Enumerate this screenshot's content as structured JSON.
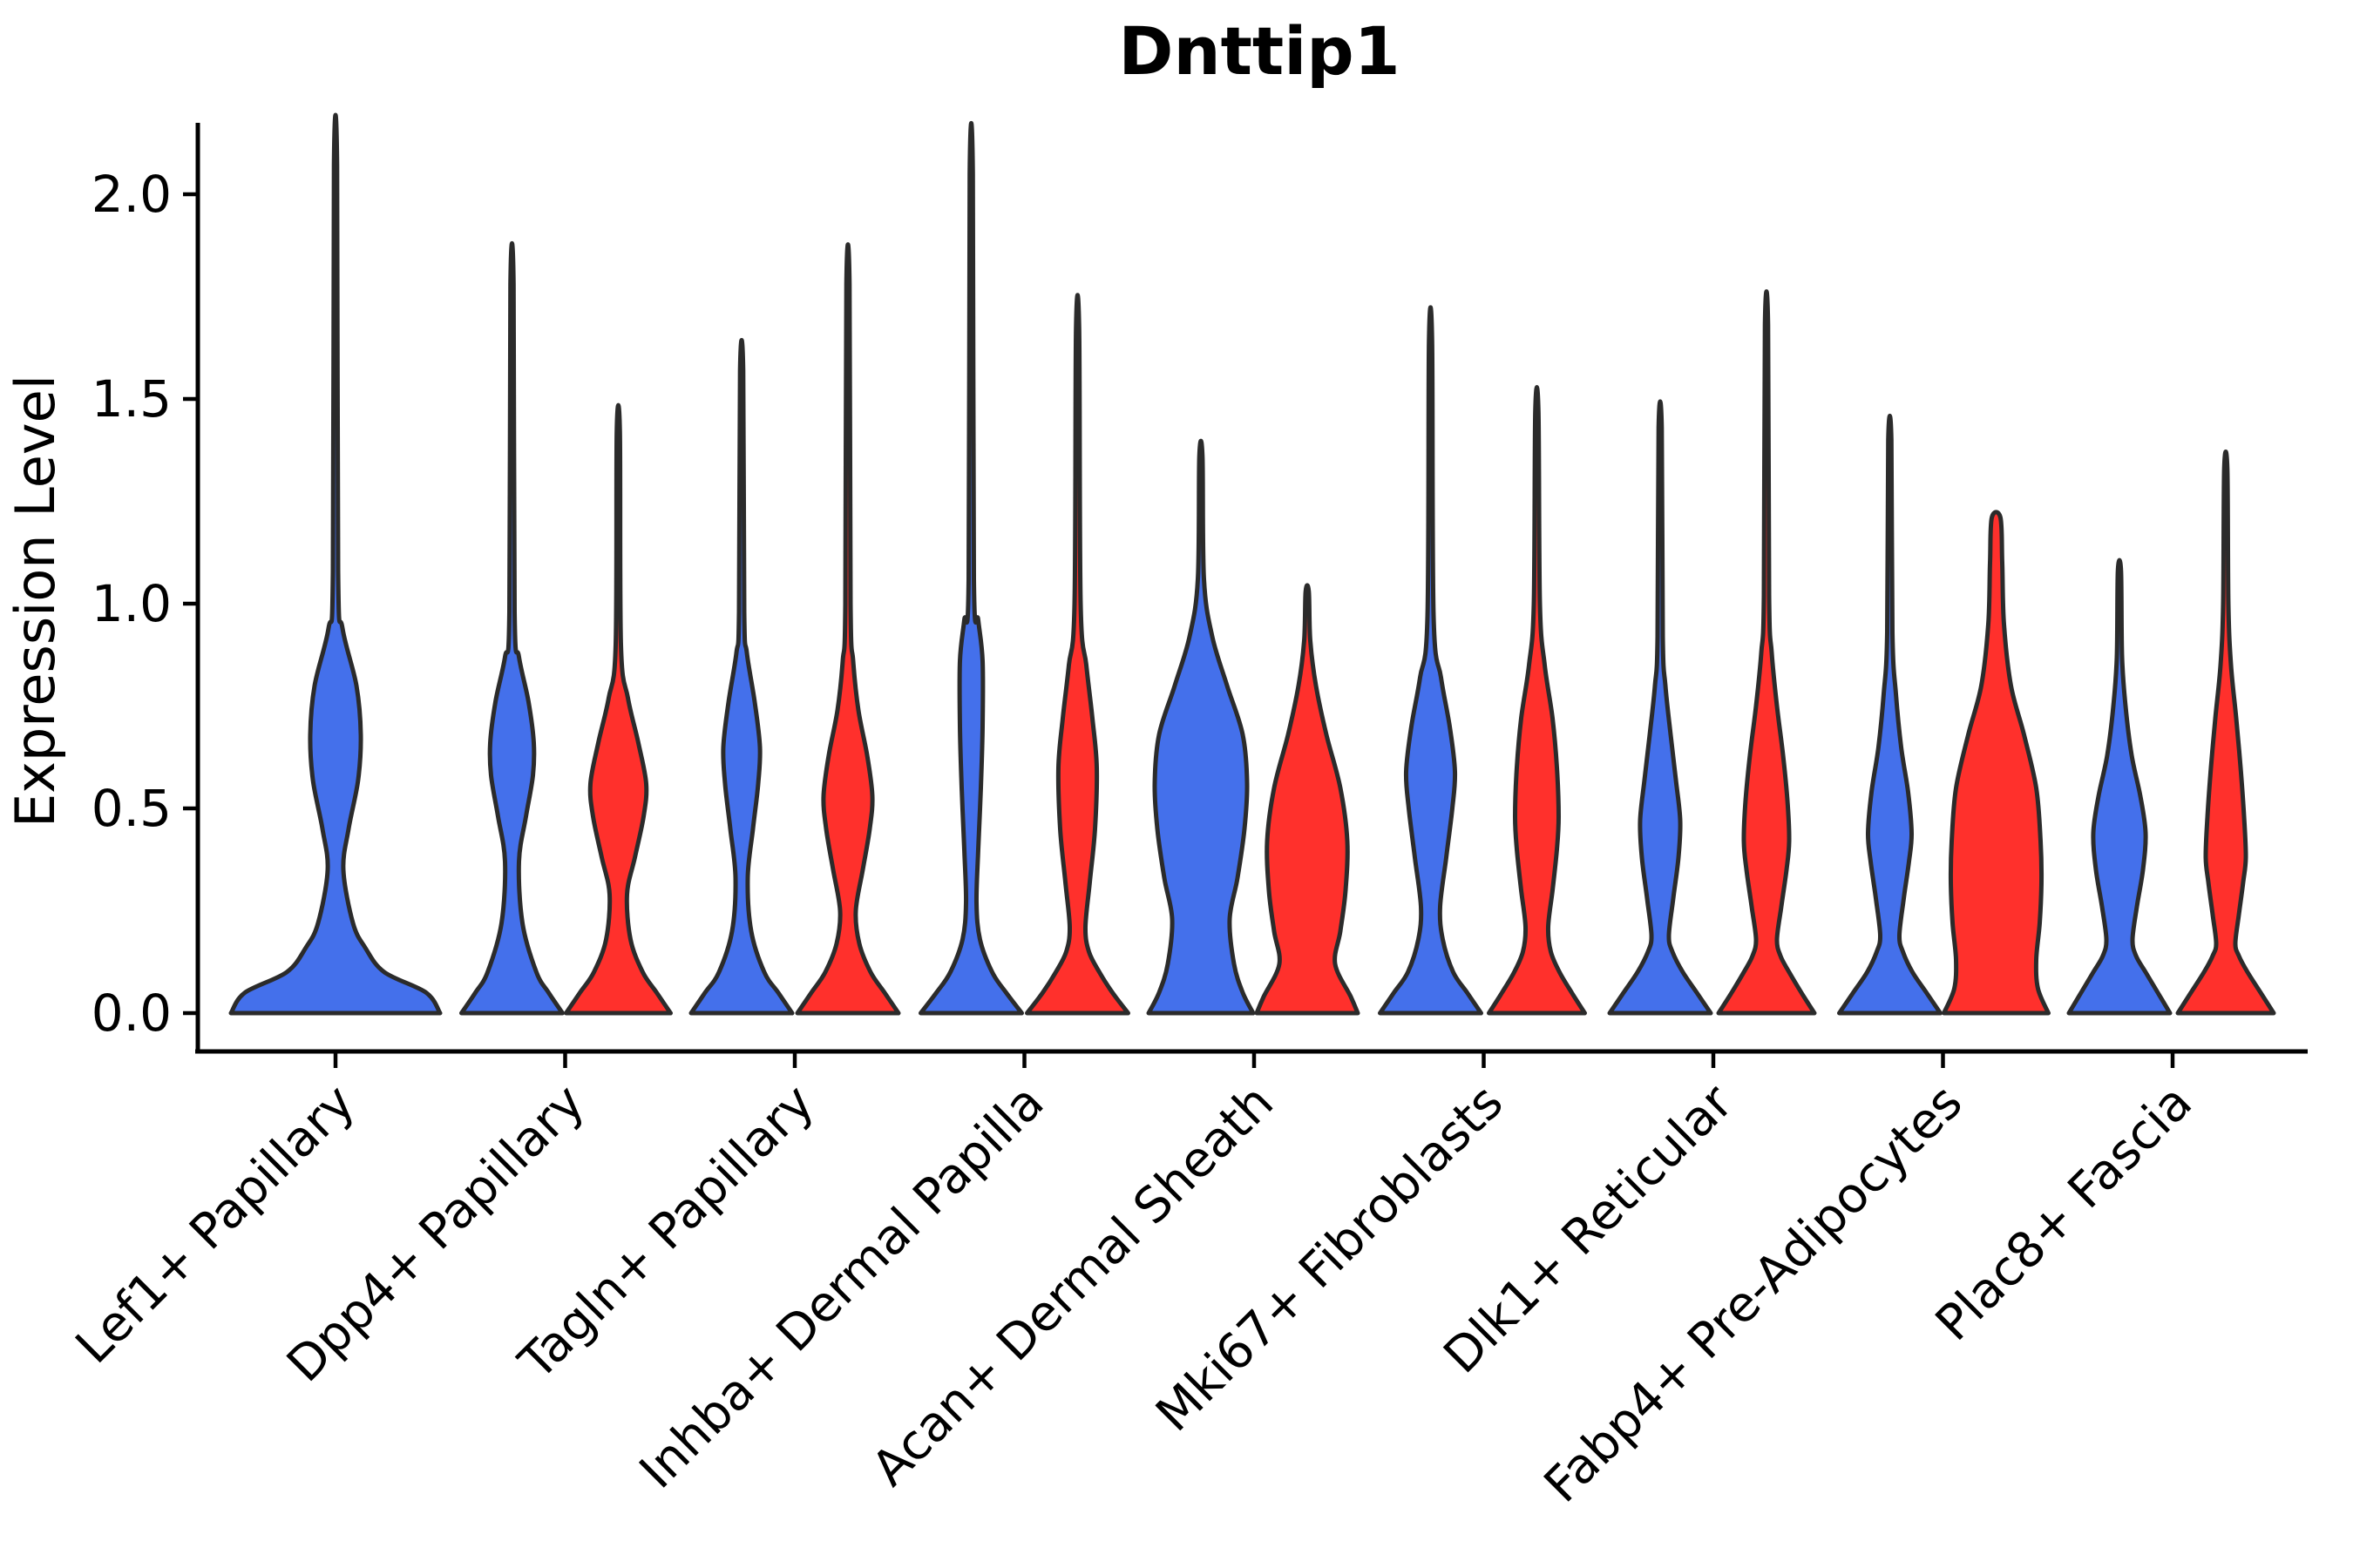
{
  "figure": {
    "title": "Dnttip1",
    "ylabel": "Expression Level"
  },
  "chart_data": {
    "type": "violin",
    "title": "Dnttip1",
    "xlabel": "",
    "ylabel": "Expression Level",
    "ylim": [
      0,
      2.17
    ],
    "yticks": [
      0.0,
      0.5,
      1.0,
      1.5,
      2.0
    ],
    "ytick_labels": [
      "0.0",
      "0.5",
      "1.0",
      "1.5",
      "2.0"
    ],
    "grid": false,
    "legend_position": "none",
    "split_colors": {
      "blue": "#4470EB",
      "red": "#FF302C"
    },
    "outline_color": "#2b2b2b",
    "axis_color": "#000000",
    "categories": [
      "Lef1+ Papillary",
      "Dpp4+ Papillary",
      "Tagln+ Papillary",
      "Inhba+ Dermal Papilla",
      "Acan+ Dermal Sheath",
      "Mki67+ Fibroblasts",
      "Dlk1+ Reticular",
      "Fabp4+ Pre-Adipocytes",
      "Plac8+ Fascia"
    ],
    "violins": [
      {
        "category": "Lef1+ Papillary",
        "group_index": 0,
        "split": "blue",
        "side": "center",
        "max_expression": 2.07,
        "profile": [
          [
            0,
            120
          ],
          [
            0.05,
            104
          ],
          [
            0.1,
            56
          ],
          [
            0.16,
            34
          ],
          [
            0.22,
            20
          ],
          [
            0.35,
            9
          ],
          [
            0.45,
            15
          ],
          [
            0.57,
            26
          ],
          [
            0.68,
            29
          ],
          [
            0.8,
            24
          ],
          [
            0.94,
            8
          ],
          [
            1.08,
            3
          ],
          [
            2.07,
            1.8
          ]
        ]
      },
      {
        "category": "Dpp4+ Papillary",
        "group_index": 1,
        "split": "blue",
        "side": "left",
        "max_expression": 1.78,
        "profile": [
          [
            0,
            58
          ],
          [
            0.05,
            42
          ],
          [
            0.1,
            28
          ],
          [
            0.22,
            12
          ],
          [
            0.37,
            8
          ],
          [
            0.48,
            16
          ],
          [
            0.58,
            24
          ],
          [
            0.66,
            25
          ],
          [
            0.76,
            19
          ],
          [
            0.87,
            8
          ],
          [
            0.98,
            3
          ],
          [
            1.78,
            1.8
          ]
        ]
      },
      {
        "category": "Dpp4+ Papillary",
        "group_index": 1,
        "split": "red",
        "side": "right",
        "max_expression": 1.42,
        "profile": [
          [
            0,
            60
          ],
          [
            0.05,
            44
          ],
          [
            0.1,
            28
          ],
          [
            0.18,
            14
          ],
          [
            0.29,
            10
          ],
          [
            0.38,
            19
          ],
          [
            0.48,
            29
          ],
          [
            0.56,
            32
          ],
          [
            0.66,
            23
          ],
          [
            0.77,
            11
          ],
          [
            0.9,
            3
          ],
          [
            1.42,
            1.8
          ]
        ]
      },
      {
        "category": "Tagln+ Papillary",
        "group_index": 2,
        "split": "blue",
        "side": "left",
        "max_expression": 1.57,
        "profile": [
          [
            0,
            58
          ],
          [
            0.05,
            42
          ],
          [
            0.1,
            26
          ],
          [
            0.2,
            11
          ],
          [
            0.33,
            7
          ],
          [
            0.45,
            13
          ],
          [
            0.56,
            19
          ],
          [
            0.65,
            21
          ],
          [
            0.76,
            15
          ],
          [
            0.88,
            6
          ],
          [
            0.98,
            3
          ],
          [
            1.57,
            1.8
          ]
        ]
      },
      {
        "category": "Tagln+ Papillary",
        "group_index": 2,
        "split": "red",
        "side": "right",
        "max_expression": 1.78,
        "profile": [
          [
            0,
            58
          ],
          [
            0.05,
            42
          ],
          [
            0.1,
            26
          ],
          [
            0.17,
            13
          ],
          [
            0.25,
            9
          ],
          [
            0.35,
            17
          ],
          [
            0.45,
            25
          ],
          [
            0.53,
            28
          ],
          [
            0.63,
            22
          ],
          [
            0.74,
            12
          ],
          [
            0.86,
            6
          ],
          [
            1.0,
            3
          ],
          [
            1.78,
            1.8
          ]
        ]
      },
      {
        "category": "Inhba+ Dermal Papilla",
        "group_index": 3,
        "split": "blue",
        "side": "left",
        "max_expression": 2.05,
        "profile": [
          [
            0,
            58
          ],
          [
            0.05,
            40
          ],
          [
            0.1,
            24
          ],
          [
            0.18,
            10
          ],
          [
            0.27,
            6
          ],
          [
            0.4,
            8
          ],
          [
            0.55,
            11
          ],
          [
            0.7,
            13
          ],
          [
            0.86,
            13
          ],
          [
            0.96,
            8
          ],
          [
            1.06,
            3
          ],
          [
            2.05,
            1.8
          ]
        ]
      },
      {
        "category": "Inhba+ Dermal Papilla",
        "group_index": 3,
        "split": "red",
        "side": "right",
        "max_expression": 1.67,
        "profile": [
          [
            0,
            58
          ],
          [
            0.05,
            40
          ],
          [
            0.1,
            25
          ],
          [
            0.15,
            13
          ],
          [
            0.21,
            9
          ],
          [
            0.32,
            14
          ],
          [
            0.45,
            20
          ],
          [
            0.6,
            22
          ],
          [
            0.72,
            17
          ],
          [
            0.85,
            10
          ],
          [
            1.0,
            3.5
          ],
          [
            1.67,
            1.8
          ]
        ]
      },
      {
        "category": "Acan+ Dermal Sheath",
        "group_index": 4,
        "split": "blue",
        "side": "left",
        "max_expression": 1.36,
        "profile": [
          [
            0,
            60
          ],
          [
            0.05,
            48
          ],
          [
            0.12,
            38
          ],
          [
            0.23,
            33
          ],
          [
            0.33,
            42
          ],
          [
            0.45,
            50
          ],
          [
            0.56,
            53
          ],
          [
            0.68,
            48
          ],
          [
            0.8,
            30
          ],
          [
            0.92,
            13
          ],
          [
            1.06,
            3.5
          ],
          [
            1.36,
            1.8
          ]
        ]
      },
      {
        "category": "Acan+ Dermal Sheath",
        "group_index": 4,
        "split": "red",
        "side": "right",
        "max_expression": 1.03,
        "profile": [
          [
            0,
            58
          ],
          [
            0.04,
            50
          ],
          [
            0.12,
            32
          ],
          [
            0.2,
            38
          ],
          [
            0.3,
            44
          ],
          [
            0.42,
            46
          ],
          [
            0.55,
            38
          ],
          [
            0.68,
            22
          ],
          [
            0.8,
            10
          ],
          [
            0.91,
            3.5
          ],
          [
            1.03,
            1.8
          ]
        ]
      },
      {
        "category": "Mki67+ Fibroblasts",
        "group_index": 5,
        "split": "blue",
        "side": "left",
        "max_expression": 1.64,
        "profile": [
          [
            0,
            58
          ],
          [
            0.05,
            42
          ],
          [
            0.1,
            26
          ],
          [
            0.18,
            14
          ],
          [
            0.26,
            11
          ],
          [
            0.38,
            18
          ],
          [
            0.5,
            25
          ],
          [
            0.59,
            28
          ],
          [
            0.7,
            22
          ],
          [
            0.82,
            12
          ],
          [
            0.97,
            3.5
          ],
          [
            1.64,
            1.8
          ]
        ]
      },
      {
        "category": "Mki67+ Fibroblasts",
        "group_index": 5,
        "split": "red",
        "side": "right",
        "max_expression": 1.47,
        "profile": [
          [
            0,
            55
          ],
          [
            0.05,
            40
          ],
          [
            0.1,
            26
          ],
          [
            0.15,
            16
          ],
          [
            0.21,
            13
          ],
          [
            0.3,
            18
          ],
          [
            0.4,
            23
          ],
          [
            0.48,
            25
          ],
          [
            0.6,
            23
          ],
          [
            0.72,
            18
          ],
          [
            0.85,
            9
          ],
          [
            1.0,
            3.5
          ],
          [
            1.47,
            1.8
          ]
        ]
      },
      {
        "category": "Dlk1+ Reticular",
        "group_index": 6,
        "split": "blue",
        "side": "left",
        "max_expression": 1.43,
        "profile": [
          [
            0,
            58
          ],
          [
            0.05,
            42
          ],
          [
            0.1,
            26
          ],
          [
            0.15,
            14
          ],
          [
            0.19,
            10
          ],
          [
            0.28,
            15
          ],
          [
            0.38,
            21
          ],
          [
            0.47,
            23
          ],
          [
            0.57,
            18
          ],
          [
            0.68,
            12
          ],
          [
            0.8,
            6
          ],
          [
            0.92,
            3
          ],
          [
            1.43,
            1.8
          ]
        ]
      },
      {
        "category": "Dlk1+ Reticular",
        "group_index": 6,
        "split": "red",
        "side": "right",
        "max_expression": 1.68,
        "profile": [
          [
            0,
            55
          ],
          [
            0.05,
            40
          ],
          [
            0.1,
            26
          ],
          [
            0.14,
            16
          ],
          [
            0.18,
            12
          ],
          [
            0.26,
            17
          ],
          [
            0.35,
            23
          ],
          [
            0.42,
            26
          ],
          [
            0.52,
            24
          ],
          [
            0.63,
            19
          ],
          [
            0.75,
            12
          ],
          [
            0.88,
            6
          ],
          [
            1.02,
            3
          ],
          [
            1.68,
            1.8
          ]
        ]
      },
      {
        "category": "Fabp4+ Pre-Adipocytes",
        "group_index": 7,
        "split": "blue",
        "side": "left",
        "max_expression": 1.4,
        "profile": [
          [
            0,
            58
          ],
          [
            0.05,
            42
          ],
          [
            0.1,
            26
          ],
          [
            0.15,
            15
          ],
          [
            0.19,
            11
          ],
          [
            0.28,
            16
          ],
          [
            0.37,
            22
          ],
          [
            0.44,
            25
          ],
          [
            0.54,
            21
          ],
          [
            0.65,
            13
          ],
          [
            0.78,
            7
          ],
          [
            0.93,
            3
          ],
          [
            1.4,
            1.8
          ]
        ]
      },
      {
        "category": "Fabp4+ Pre-Adipocytes",
        "group_index": 7,
        "split": "red",
        "side": "right",
        "max_expression": 1.21,
        "profile": [
          [
            0,
            60
          ],
          [
            0.06,
            48
          ],
          [
            0.13,
            46
          ],
          [
            0.22,
            50
          ],
          [
            0.32,
            52
          ],
          [
            0.42,
            51
          ],
          [
            0.55,
            46
          ],
          [
            0.68,
            32
          ],
          [
            0.8,
            17
          ],
          [
            0.95,
            9
          ],
          [
            1.1,
            7
          ],
          [
            1.21,
            5
          ]
        ]
      },
      {
        "category": "Plac8+ Fascia",
        "group_index": 8,
        "split": "blue",
        "side": "left",
        "max_expression": 1.08,
        "profile": [
          [
            0,
            58
          ],
          [
            0.05,
            44
          ],
          [
            0.1,
            30
          ],
          [
            0.14,
            19
          ],
          [
            0.18,
            15
          ],
          [
            0.26,
            20
          ],
          [
            0.35,
            27
          ],
          [
            0.44,
            30
          ],
          [
            0.53,
            24
          ],
          [
            0.63,
            14
          ],
          [
            0.75,
            7
          ],
          [
            0.87,
            3
          ],
          [
            1.08,
            1.8
          ]
        ]
      },
      {
        "category": "Plac8+ Fascia",
        "group_index": 8,
        "split": "red",
        "side": "right",
        "max_expression": 1.33,
        "profile": [
          [
            0,
            55
          ],
          [
            0.05,
            40
          ],
          [
            0.1,
            25
          ],
          [
            0.14,
            15
          ],
          [
            0.17,
            11
          ],
          [
            0.24,
            15
          ],
          [
            0.32,
            20
          ],
          [
            0.38,
            23
          ],
          [
            0.48,
            21
          ],
          [
            0.6,
            17
          ],
          [
            0.72,
            12
          ],
          [
            0.85,
            6
          ],
          [
            1.0,
            3
          ],
          [
            1.33,
            1.8
          ]
        ]
      }
    ]
  }
}
